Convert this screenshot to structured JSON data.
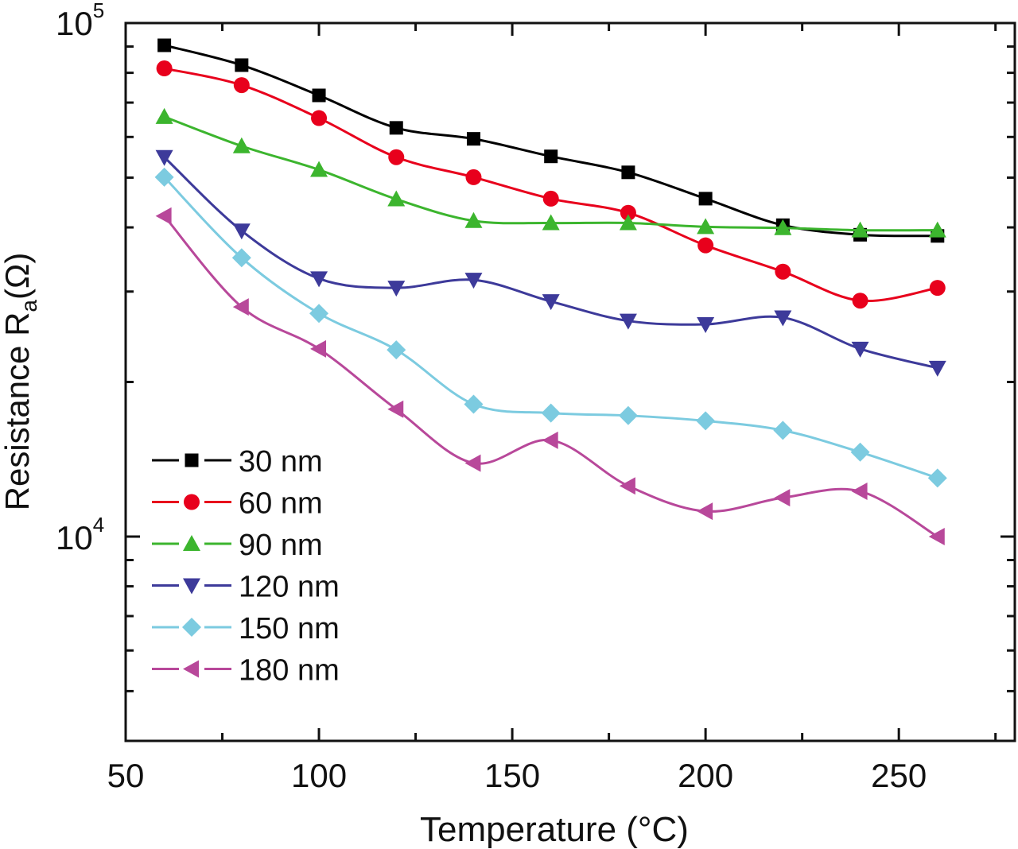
{
  "chart_data": {
    "type": "line",
    "title": "",
    "xlabel": "Temperature (°C)",
    "xlabel_parts": {
      "main": "Temperature (",
      "sup": "o",
      "end": "C)"
    },
    "ylabel": "Resistance Ra(Ω)",
    "ylabel_parts": {
      "main": "Resistance R",
      "sub": "a",
      "end": "(Ω)"
    },
    "xlim": [
      50,
      280
    ],
    "ylim": [
      4000,
      100000
    ],
    "yscale": "log",
    "grid": false,
    "legend_position": "bottom-left",
    "x_ticks": [
      "50",
      "100",
      "150",
      "200",
      "250"
    ],
    "y_ticks": [
      {
        "base": "10",
        "exp": "4"
      },
      {
        "base": "10",
        "exp": "5"
      }
    ],
    "x": [
      60,
      80,
      100,
      120,
      140,
      160,
      180,
      200,
      220,
      240,
      260
    ],
    "series": [
      {
        "name": "30 nm",
        "color": "#000000",
        "marker": "square",
        "values": [
          90500,
          82800,
          72300,
          62500,
          59500,
          55000,
          51200,
          45500,
          40400,
          38700,
          38500
        ]
      },
      {
        "name": "60 nm",
        "color": "#e8001c",
        "marker": "circle",
        "values": [
          81600,
          75700,
          65300,
          54800,
          50100,
          45500,
          42700,
          36900,
          32800,
          28800,
          30500
        ]
      },
      {
        "name": "90 nm",
        "color": "#3cb52e",
        "marker": "triangle-up",
        "values": [
          65700,
          57600,
          51800,
          45400,
          41200,
          40800,
          40800,
          40100,
          39900,
          39500,
          39500
        ]
      },
      {
        "name": "120 nm",
        "color": "#3d3a9a",
        "marker": "triangle-down",
        "values": [
          54800,
          39400,
          31800,
          30500,
          31600,
          28700,
          26300,
          25900,
          26700,
          23200,
          21300
        ]
      },
      {
        "name": "150 nm",
        "color": "#7ccbe0",
        "marker": "diamond",
        "values": [
          50100,
          34900,
          27200,
          23100,
          18100,
          17400,
          17200,
          16800,
          16100,
          14600,
          13000
        ]
      },
      {
        "name": "180 nm",
        "color": "#b8489a",
        "marker": "triangle-left",
        "values": [
          42100,
          28000,
          23200,
          17700,
          13900,
          15400,
          12550,
          11200,
          11900,
          12250,
          10000
        ]
      }
    ]
  }
}
